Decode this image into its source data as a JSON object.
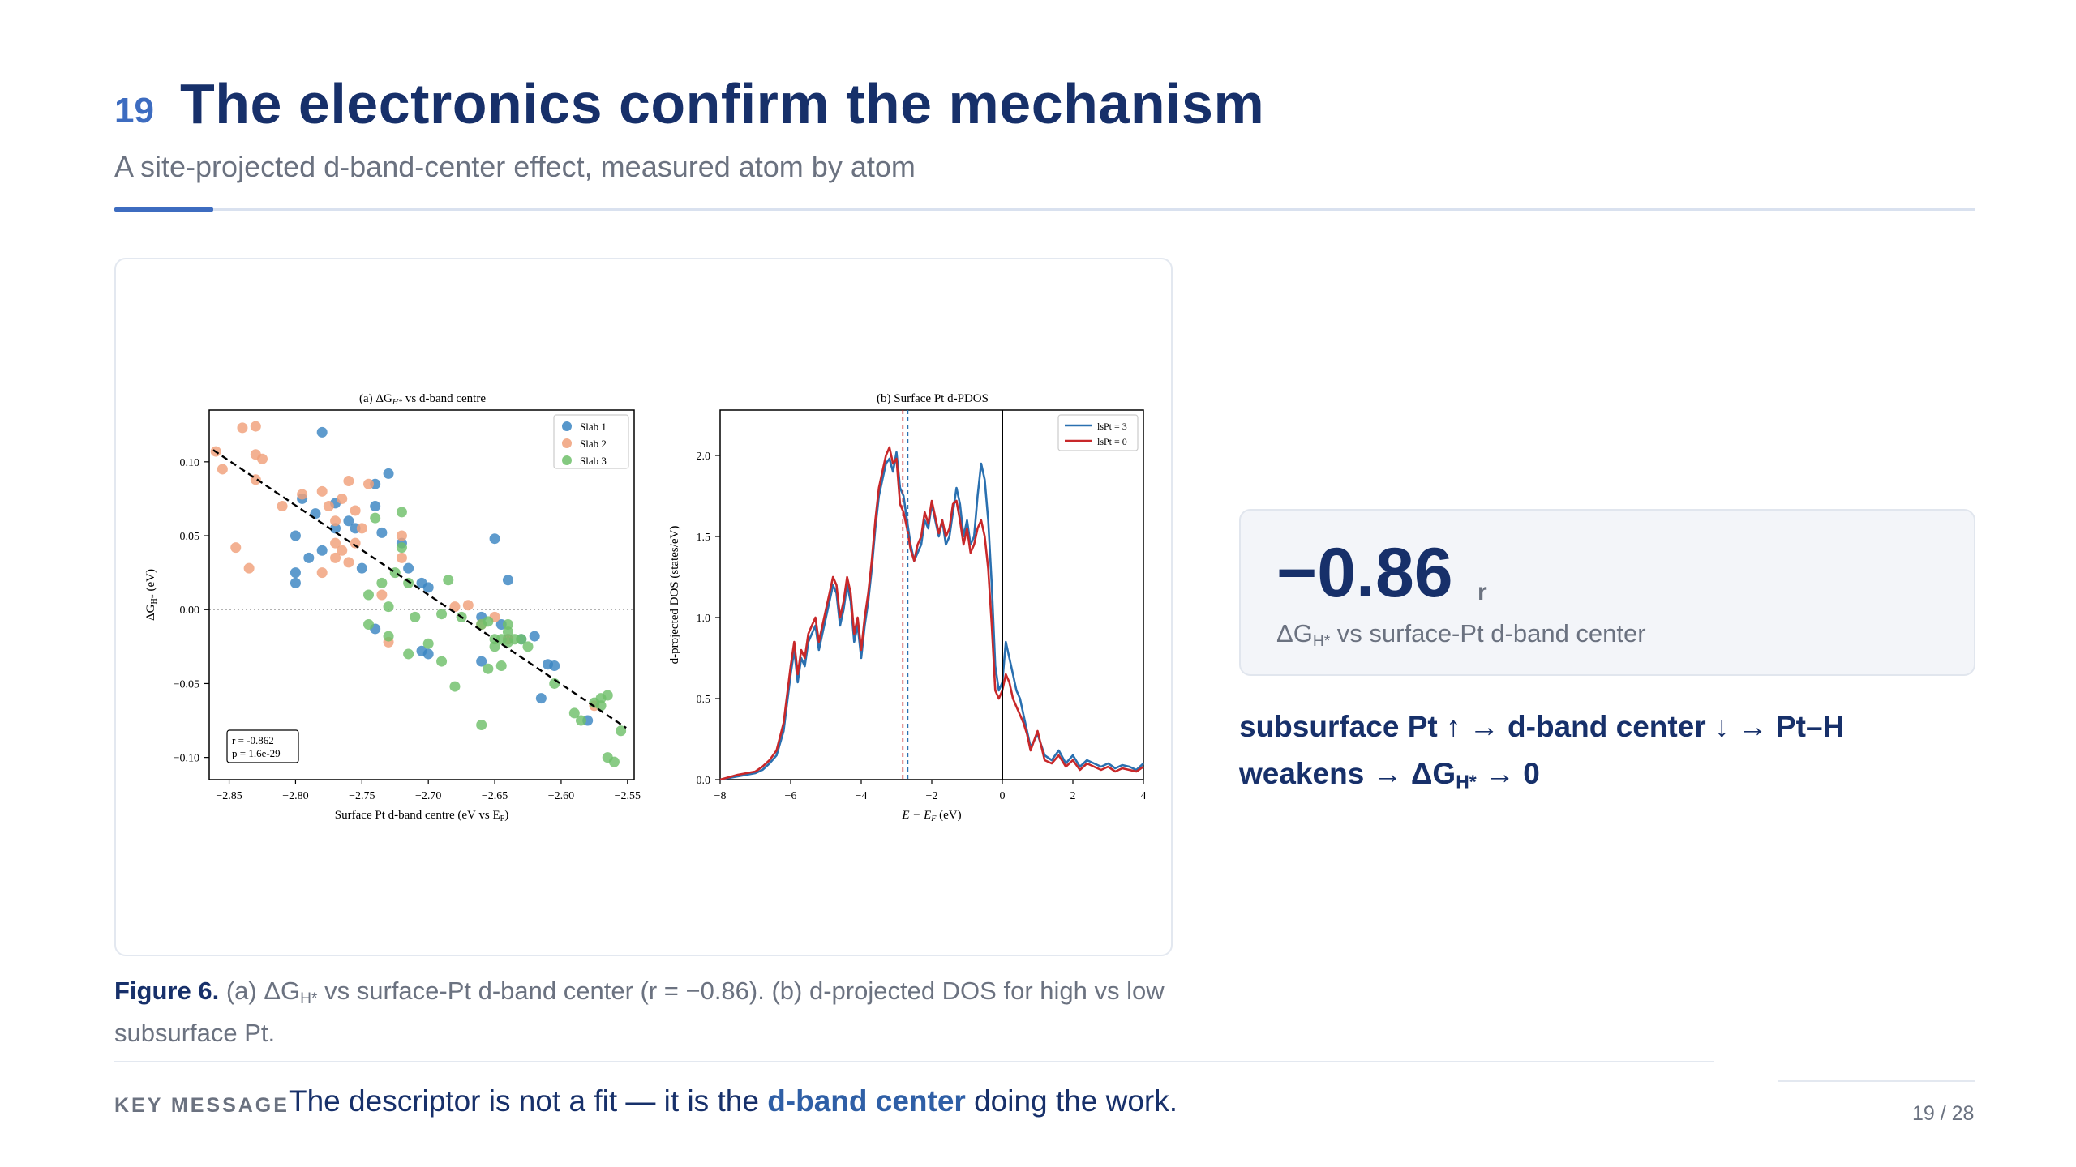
{
  "header": {
    "slide_number": "19",
    "title": "The electronics confirm the mechanism",
    "subtitle": "A site-projected d-band-center effect, measured atom by atom"
  },
  "figure": {
    "panel_a": {
      "title_prefix": "(a)  ΔG",
      "title_sub": "H*",
      "title_suffix": "  vs d-band centre",
      "xlabel": "Surface Pt d-band centre (eV vs E",
      "xlabel_sub": "F",
      "xlabel_end": ")",
      "ylabel": "ΔG",
      "ylabel_sub": "H*",
      "ylabel_end": " (eV)",
      "stats_r": "r = -0.862",
      "stats_p": "p = 1.6e-29"
    },
    "panel_b": {
      "title": "(b)  Surface Pt d-PDOS",
      "xlabel": "E − E",
      "xlabel_sub": "F",
      "xlabel_end": " (eV)",
      "ylabel": "d-projected DOS (states/eV)"
    }
  },
  "chart_data": [
    {
      "type": "scatter",
      "title": "(a) ΔGH* vs d-band centre",
      "xlabel": "Surface Pt d-band centre (eV vs EF)",
      "ylabel": "ΔGH* (eV)",
      "xlim": [
        -2.865,
        -2.545
      ],
      "ylim": [
        -0.115,
        0.135
      ],
      "xticks": [
        -2.85,
        -2.8,
        -2.75,
        -2.7,
        -2.65,
        -2.6,
        -2.55
      ],
      "xtick_labels": [
        "−2.85",
        "−2.80",
        "−2.75",
        "−2.70",
        "−2.65",
        "−2.60",
        "−2.55"
      ],
      "yticks": [
        -0.1,
        -0.05,
        0.0,
        0.05,
        0.1
      ],
      "ytick_labels": [
        "−0.10",
        "−0.05",
        "0.00",
        "0.05",
        "0.10"
      ],
      "legend_position": "top-right",
      "grid": false,
      "zero_line": 0.0,
      "fit_line": {
        "x": [
          -2.862,
          -2.551
        ],
        "y": [
          0.108,
          -0.08
        ]
      },
      "series": [
        {
          "name": "Slab 1",
          "color": "#3a85c2",
          "points": [
            [
              -2.78,
              0.12
            ],
            [
              -2.73,
              0.092
            ],
            [
              -2.74,
              0.085
            ],
            [
              -2.795,
              0.075
            ],
            [
              -2.785,
              0.065
            ],
            [
              -2.77,
              0.072
            ],
            [
              -2.74,
              0.07
            ],
            [
              -2.76,
              0.06
            ],
            [
              -2.8,
              0.05
            ],
            [
              -2.77,
              0.055
            ],
            [
              -2.755,
              0.055
            ],
            [
              -2.735,
              0.052
            ],
            [
              -2.79,
              0.035
            ],
            [
              -2.78,
              0.04
            ],
            [
              -2.8,
              0.025
            ],
            [
              -2.8,
              0.018
            ],
            [
              -2.75,
              0.028
            ],
            [
              -2.72,
              0.045
            ],
            [
              -2.715,
              0.028
            ],
            [
              -2.705,
              0.018
            ],
            [
              -2.7,
              0.015
            ],
            [
              -2.65,
              0.048
            ],
            [
              -2.64,
              0.02
            ],
            [
              -2.66,
              -0.005
            ],
            [
              -2.645,
              -0.01
            ],
            [
              -2.64,
              -0.02
            ],
            [
              -2.63,
              -0.02
            ],
            [
              -2.62,
              -0.018
            ],
            [
              -2.61,
              -0.037
            ],
            [
              -2.605,
              -0.038
            ],
            [
              -2.66,
              -0.035
            ],
            [
              -2.615,
              -0.06
            ],
            [
              -2.74,
              -0.013
            ],
            [
              -2.7,
              -0.03
            ],
            [
              -2.705,
              -0.028
            ],
            [
              -2.58,
              -0.075
            ]
          ]
        },
        {
          "name": "Slab 2",
          "color": "#f0a07a",
          "points": [
            [
              -2.86,
              0.107
            ],
            [
              -2.855,
              0.095
            ],
            [
              -2.84,
              0.123
            ],
            [
              -2.83,
              0.124
            ],
            [
              -2.83,
              0.105
            ],
            [
              -2.825,
              0.102
            ],
            [
              -2.83,
              0.088
            ],
            [
              -2.81,
              0.07
            ],
            [
              -2.795,
              0.078
            ],
            [
              -2.78,
              0.08
            ],
            [
              -2.775,
              0.07
            ],
            [
              -2.77,
              0.06
            ],
            [
              -2.765,
              0.075
            ],
            [
              -2.76,
              0.087
            ],
            [
              -2.755,
              0.067
            ],
            [
              -2.755,
              0.045
            ],
            [
              -2.745,
              0.085
            ],
            [
              -2.75,
              0.055
            ],
            [
              -2.765,
              0.04
            ],
            [
              -2.77,
              0.035
            ],
            [
              -2.77,
              0.045
            ],
            [
              -2.735,
              0.01
            ],
            [
              -2.72,
              0.05
            ],
            [
              -2.72,
              0.035
            ],
            [
              -2.845,
              0.042
            ],
            [
              -2.835,
              0.028
            ],
            [
              -2.78,
              0.025
            ],
            [
              -2.76,
              0.032
            ],
            [
              -2.73,
              -0.022
            ],
            [
              -2.68,
              0.002
            ],
            [
              -2.67,
              0.003
            ],
            [
              -2.65,
              -0.005
            ],
            [
              -2.66,
              -0.01
            ],
            [
              -2.64,
              -0.02
            ],
            [
              -2.575,
              -0.065
            ]
          ]
        },
        {
          "name": "Slab 3",
          "color": "#6fbf6a",
          "points": [
            [
              -2.72,
              0.066
            ],
            [
              -2.74,
              0.062
            ],
            [
              -2.72,
              0.042
            ],
            [
              -2.725,
              0.025
            ],
            [
              -2.715,
              0.018
            ],
            [
              -2.735,
              0.018
            ],
            [
              -2.73,
              0.002
            ],
            [
              -2.745,
              -0.01
            ],
            [
              -2.745,
              0.01
            ],
            [
              -2.71,
              -0.005
            ],
            [
              -2.69,
              -0.003
            ],
            [
              -2.685,
              0.02
            ],
            [
              -2.675,
              -0.005
            ],
            [
              -2.66,
              -0.01
            ],
            [
              -2.655,
              -0.008
            ],
            [
              -2.65,
              -0.02
            ],
            [
              -2.645,
              -0.02
            ],
            [
              -2.64,
              -0.022
            ],
            [
              -2.635,
              -0.02
            ],
            [
              -2.63,
              -0.02
            ],
            [
              -2.625,
              -0.025
            ],
            [
              -2.64,
              -0.015
            ],
            [
              -2.64,
              -0.01
            ],
            [
              -2.7,
              -0.023
            ],
            [
              -2.715,
              -0.03
            ],
            [
              -2.69,
              -0.035
            ],
            [
              -2.68,
              -0.052
            ],
            [
              -2.655,
              -0.04
            ],
            [
              -2.65,
              -0.025
            ],
            [
              -2.605,
              -0.05
            ],
            [
              -2.59,
              -0.07
            ],
            [
              -2.585,
              -0.075
            ],
            [
              -2.575,
              -0.063
            ],
            [
              -2.57,
              -0.06
            ],
            [
              -2.565,
              -0.058
            ],
            [
              -2.57,
              -0.065
            ],
            [
              -2.555,
              -0.082
            ],
            [
              -2.565,
              -0.1
            ],
            [
              -2.56,
              -0.103
            ],
            [
              -2.66,
              -0.078
            ],
            [
              -2.645,
              -0.038
            ],
            [
              -2.73,
              -0.018
            ]
          ]
        }
      ]
    },
    {
      "type": "line",
      "title": "(b) Surface Pt d-PDOS",
      "xlabel": "E − EF (eV)",
      "ylabel": "d-projected DOS (states/eV)",
      "xlim": [
        -8,
        4
      ],
      "ylim": [
        0,
        2.28
      ],
      "xticks": [
        -8,
        -6,
        -4,
        -2,
        0,
        2,
        4
      ],
      "xtick_labels": [
        "−8",
        "−6",
        "−4",
        "−2",
        "0",
        "2",
        "4"
      ],
      "yticks": [
        0.0,
        0.5,
        1.0,
        1.5,
        2.0
      ],
      "ytick_labels": [
        "0.0",
        "0.5",
        "1.0",
        "1.5",
        "2.0"
      ],
      "legend_position": "top-right",
      "fermi_level": 0,
      "series": [
        {
          "name": "lsPt = 3",
          "color": "#2a70b0",
          "band_centre": -2.68,
          "x": [
            -8,
            -7.5,
            -7,
            -6.8,
            -6.6,
            -6.4,
            -6.2,
            -6,
            -5.9,
            -5.8,
            -5.7,
            -5.6,
            -5.5,
            -5.4,
            -5.3,
            -5.2,
            -5.1,
            -5,
            -4.9,
            -4.8,
            -4.7,
            -4.6,
            -4.5,
            -4.4,
            -4.3,
            -4.2,
            -4.1,
            -4,
            -3.9,
            -3.8,
            -3.7,
            -3.6,
            -3.5,
            -3.4,
            -3.3,
            -3.2,
            -3.1,
            -3,
            -2.9,
            -2.8,
            -2.7,
            -2.6,
            -2.5,
            -2.4,
            -2.3,
            -2.2,
            -2.1,
            -2,
            -1.9,
            -1.8,
            -1.7,
            -1.6,
            -1.5,
            -1.4,
            -1.3,
            -1.2,
            -1.1,
            -1,
            -0.9,
            -0.8,
            -0.7,
            -0.6,
            -0.5,
            -0.4,
            -0.3,
            -0.2,
            -0.1,
            0,
            0.1,
            0.2,
            0.3,
            0.4,
            0.5,
            0.6,
            0.7,
            0.8,
            1,
            1.2,
            1.4,
            1.6,
            1.8,
            2,
            2.2,
            2.4,
            2.6,
            2.8,
            3,
            3.2,
            3.4,
            3.6,
            3.8,
            4
          ],
          "y": [
            0.0,
            0.02,
            0.04,
            0.06,
            0.1,
            0.15,
            0.3,
            0.65,
            0.8,
            0.6,
            0.75,
            0.7,
            0.85,
            0.9,
            0.95,
            0.8,
            0.9,
            1.0,
            1.1,
            1.2,
            1.15,
            0.95,
            1.05,
            1.2,
            1.1,
            0.85,
            0.95,
            0.75,
            0.95,
            1.1,
            1.3,
            1.55,
            1.75,
            1.85,
            1.95,
            1.98,
            1.9,
            2.02,
            1.8,
            1.75,
            1.6,
            1.45,
            1.35,
            1.4,
            1.45,
            1.6,
            1.55,
            1.7,
            1.6,
            1.5,
            1.6,
            1.45,
            1.5,
            1.65,
            1.8,
            1.7,
            1.5,
            1.6,
            1.45,
            1.5,
            1.75,
            1.95,
            1.85,
            1.6,
            1.2,
            0.7,
            0.55,
            0.6,
            0.85,
            0.75,
            0.65,
            0.55,
            0.5,
            0.4,
            0.3,
            0.2,
            0.28,
            0.15,
            0.12,
            0.18,
            0.1,
            0.15,
            0.08,
            0.12,
            0.1,
            0.08,
            0.1,
            0.07,
            0.09,
            0.08,
            0.06,
            0.1
          ]
        },
        {
          "name": "lsPt = 0",
          "color": "#c8282a",
          "band_centre": -2.82,
          "x": [
            -8,
            -7.5,
            -7,
            -6.8,
            -6.6,
            -6.4,
            -6.2,
            -6,
            -5.9,
            -5.8,
            -5.7,
            -5.6,
            -5.5,
            -5.4,
            -5.3,
            -5.2,
            -5.1,
            -5,
            -4.9,
            -4.8,
            -4.7,
            -4.6,
            -4.5,
            -4.4,
            -4.3,
            -4.2,
            -4.1,
            -4,
            -3.9,
            -3.8,
            -3.7,
            -3.6,
            -3.5,
            -3.4,
            -3.3,
            -3.2,
            -3.1,
            -3,
            -2.9,
            -2.8,
            -2.7,
            -2.6,
            -2.5,
            -2.4,
            -2.3,
            -2.2,
            -2.1,
            -2,
            -1.9,
            -1.8,
            -1.7,
            -1.6,
            -1.5,
            -1.4,
            -1.3,
            -1.2,
            -1.1,
            -1,
            -0.9,
            -0.8,
            -0.7,
            -0.6,
            -0.5,
            -0.4,
            -0.3,
            -0.2,
            -0.1,
            0,
            0.1,
            0.2,
            0.3,
            0.4,
            0.5,
            0.6,
            0.7,
            0.8,
            1,
            1.2,
            1.4,
            1.6,
            1.8,
            2,
            2.2,
            2.4,
            2.6,
            2.8,
            3,
            3.2,
            3.4,
            3.6,
            3.8,
            4
          ],
          "y": [
            0.0,
            0.03,
            0.05,
            0.08,
            0.12,
            0.18,
            0.35,
            0.7,
            0.85,
            0.65,
            0.8,
            0.75,
            0.9,
            0.95,
            1.0,
            0.85,
            0.95,
            1.05,
            1.15,
            1.25,
            1.2,
            1.0,
            1.1,
            1.25,
            1.15,
            0.9,
            1.0,
            0.8,
            1.0,
            1.15,
            1.35,
            1.6,
            1.8,
            1.9,
            2.0,
            2.05,
            1.95,
            1.98,
            1.7,
            1.65,
            1.55,
            1.42,
            1.35,
            1.45,
            1.5,
            1.65,
            1.58,
            1.72,
            1.62,
            1.52,
            1.6,
            1.5,
            1.55,
            1.7,
            1.72,
            1.6,
            1.45,
            1.55,
            1.4,
            1.45,
            1.55,
            1.6,
            1.5,
            1.3,
            0.95,
            0.55,
            0.5,
            0.55,
            0.65,
            0.6,
            0.5,
            0.45,
            0.4,
            0.35,
            0.28,
            0.18,
            0.3,
            0.12,
            0.1,
            0.15,
            0.08,
            0.12,
            0.06,
            0.1,
            0.08,
            0.06,
            0.08,
            0.05,
            0.07,
            0.06,
            0.05,
            0.08
          ]
        }
      ]
    }
  ],
  "caption": {
    "label": "Figure 6.",
    "text_1": " (a) ΔG",
    "sub_1": "H*",
    "text_2": " vs surface-Pt d-band center (r = −0.86). (b) d-projected DOS for high vs low subsurface Pt."
  },
  "stat": {
    "value": "−0.86",
    "unit": "r",
    "label_1": "ΔG",
    "label_sub": "H*",
    "label_2": " vs surface-Pt d-band center"
  },
  "mechanism": {
    "text_1": "subsurface Pt ↑ → d-band center ↓ → Pt–H weakens → ΔG",
    "sub": "H*",
    "text_2": " → 0"
  },
  "footer": {
    "key_label": "KEY MESSAGE",
    "message_1": "The descriptor is not a fit — it is the ",
    "message_bold": "d-band center",
    "message_2": " doing the work.",
    "page_number": "19 / 28"
  }
}
